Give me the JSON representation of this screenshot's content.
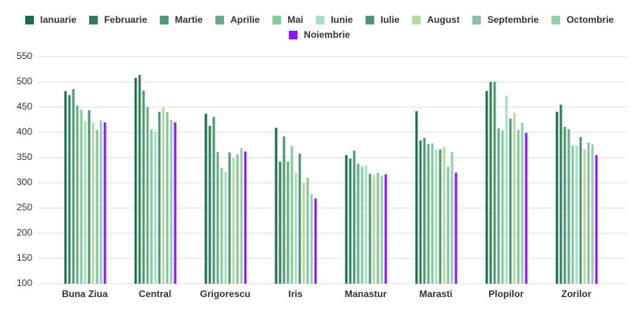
{
  "chart_data": {
    "type": "bar",
    "categories": [
      "Buna Ziua",
      "Central",
      "Grigorescu",
      "Iris",
      "Manastur",
      "Marasti",
      "Plopilor",
      "Zorilor"
    ],
    "series": [
      {
        "name": "Ianuarie",
        "color": "#1b6b4e",
        "values": [
          482,
          508,
          437,
          409,
          355,
          442,
          482,
          441
        ]
      },
      {
        "name": "Februarie",
        "color": "#2f7f5c",
        "values": [
          474,
          514,
          413,
          342,
          348,
          384,
          500,
          455
        ]
      },
      {
        "name": "Martie",
        "color": "#4a9a72",
        "values": [
          486,
          483,
          431,
          392,
          364,
          389,
          500,
          411
        ]
      },
      {
        "name": "Aprilie",
        "color": "#6aac8a",
        "values": [
          453,
          450,
          361,
          342,
          338,
          377,
          408,
          406
        ]
      },
      {
        "name": "Mai",
        "color": "#80cc9c",
        "values": [
          445,
          406,
          330,
          373,
          332,
          378,
          404,
          374
        ]
      },
      {
        "name": "Iunie",
        "color": "#a8dfc2",
        "values": [
          422,
          402,
          322,
          320,
          335,
          366,
          473,
          374
        ]
      },
      {
        "name": "Iulie",
        "color": "#4f9478",
        "values": [
          444,
          441,
          360,
          358,
          318,
          366,
          427,
          391
        ]
      },
      {
        "name": "August",
        "color": "#b6d99e",
        "values": [
          419,
          450,
          349,
          300,
          316,
          371,
          439,
          367
        ]
      },
      {
        "name": "Septembrie",
        "color": "#8cbfa6",
        "values": [
          405,
          440,
          357,
          310,
          320,
          332,
          405,
          380
        ]
      },
      {
        "name": "Octombrie",
        "color": "#8fd0ae",
        "values": [
          424,
          425,
          369,
          278,
          314,
          361,
          419,
          376
        ]
      },
      {
        "name": "Noiembrie",
        "color": "#9013fe",
        "values": [
          420,
          420,
          362,
          269,
          317,
          320,
          399,
          355
        ]
      }
    ],
    "ylim": [
      100,
      550
    ],
    "yticks": [
      100,
      150,
      200,
      250,
      300,
      350,
      400,
      450,
      500,
      550
    ],
    "grid": true
  }
}
